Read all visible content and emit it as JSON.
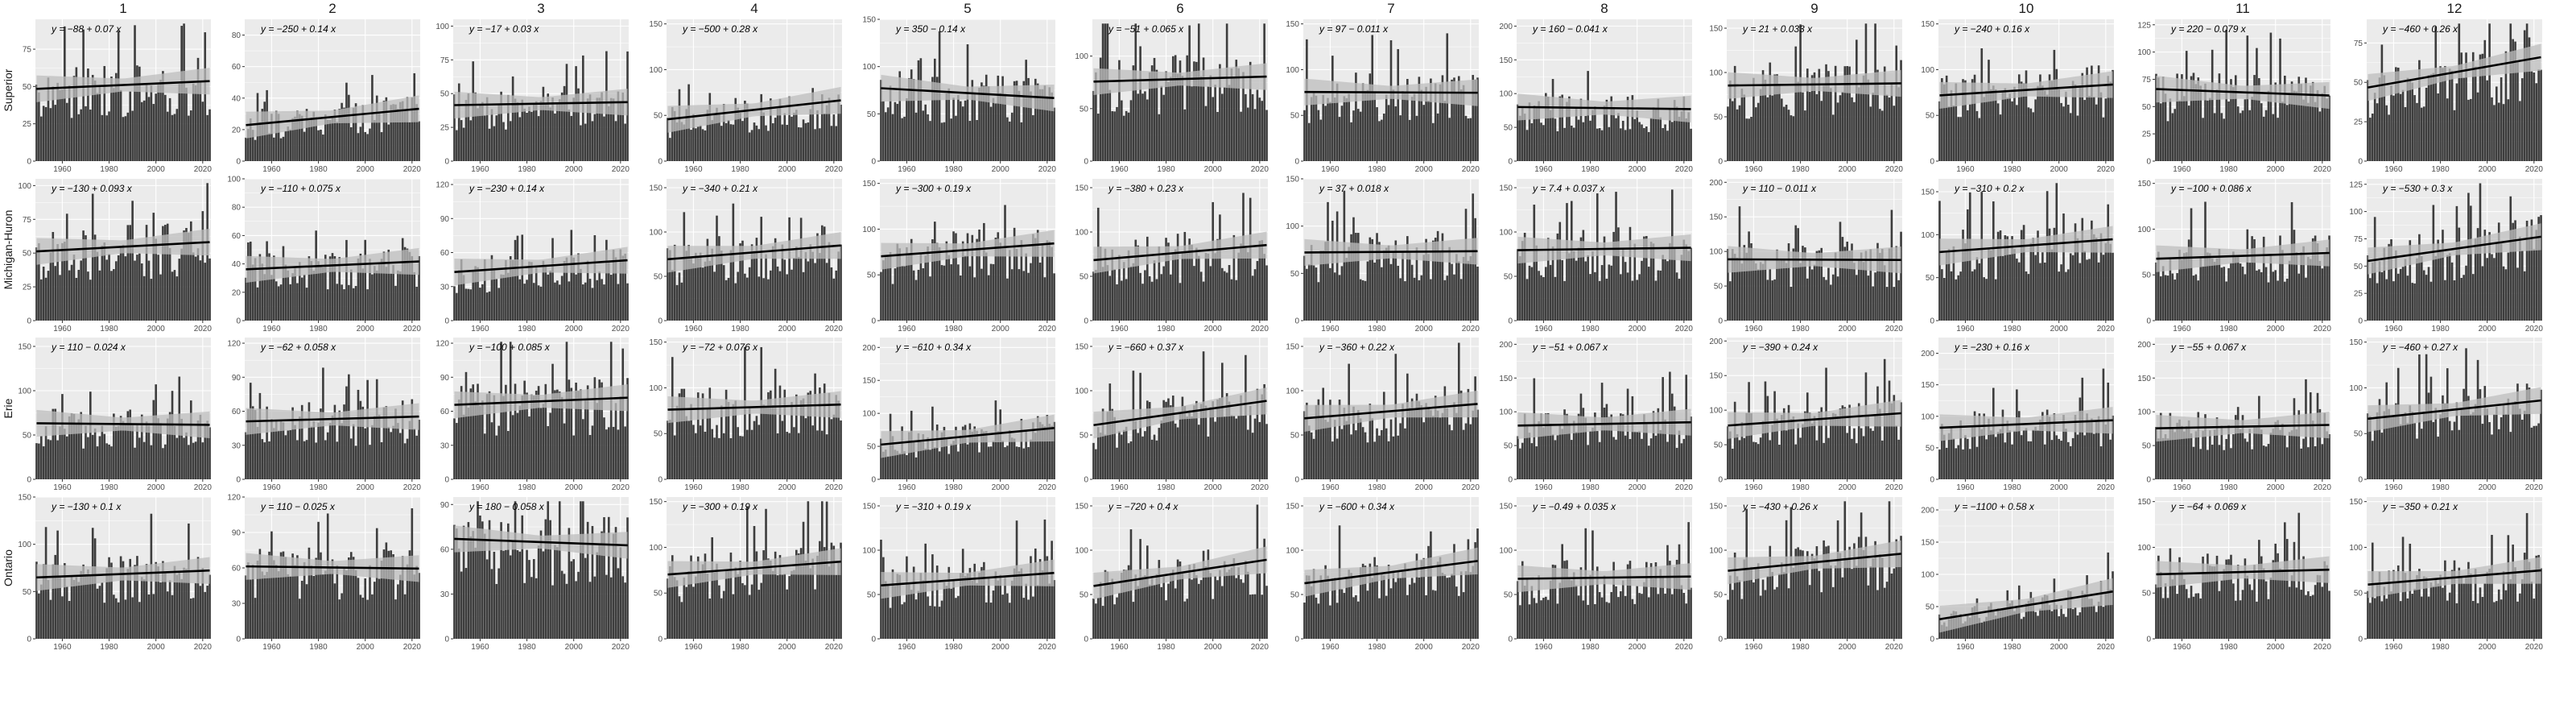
{
  "chart_data": {
    "type": "bar",
    "facets": {
      "columns": [
        "1",
        "2",
        "3",
        "4",
        "5",
        "6",
        "7",
        "8",
        "9",
        "10",
        "11",
        "12"
      ],
      "rows": [
        "Superior",
        "Michigan-Huron",
        "Erie",
        "Ontario"
      ]
    },
    "x_ticks": [
      "1960",
      "1980",
      "2000",
      "2020"
    ],
    "x_range": [
      1949,
      2023
    ],
    "overlay": "linear trend line with grey confidence band",
    "colors": {
      "bar": "#3d3d3d",
      "panel": "#ebebeb",
      "grid": "#ffffff",
      "trend": "#000000",
      "band": "#bdbdbd"
    },
    "panels": [
      {
        "row": "Superior",
        "col": "1",
        "equation": "y = −88 + 0.07 x",
        "y_ticks": [
          "0",
          "25",
          "50",
          "75"
        ],
        "y_max": 95
      },
      {
        "row": "Superior",
        "col": "2",
        "equation": "y = −250 + 0.14 x",
        "y_ticks": [
          "0",
          "20",
          "40",
          "60",
          "80"
        ],
        "y_max": 90
      },
      {
        "row": "Superior",
        "col": "3",
        "equation": "y = −17 + 0.03 x",
        "y_ticks": [
          "0",
          "25",
          "50",
          "75",
          "100"
        ],
        "y_max": 105
      },
      {
        "row": "Superior",
        "col": "4",
        "equation": "y = −500 + 0.28 x",
        "y_ticks": [
          "0",
          "50",
          "100",
          "150"
        ],
        "y_max": 155
      },
      {
        "row": "Superior",
        "col": "5",
        "equation": "y = 350 − 0.14 x",
        "y_ticks": [
          "0",
          "50",
          "100",
          "150"
        ],
        "y_max": 150
      },
      {
        "row": "Superior",
        "col": "6",
        "equation": "y = −51 + 0.065 x",
        "y_ticks": [
          "0",
          "50",
          "100"
        ],
        "y_max": 135
      },
      {
        "row": "Superior",
        "col": "7",
        "equation": "y = 97 − 0.011 x",
        "y_ticks": [
          "0",
          "50",
          "100",
          "150"
        ],
        "y_max": 155
      },
      {
        "row": "Superior",
        "col": "8",
        "equation": "y = 160 − 0.041 x",
        "y_ticks": [
          "0",
          "50",
          "100",
          "150",
          "200"
        ],
        "y_max": 210
      },
      {
        "row": "Superior",
        "col": "9",
        "equation": "y = 21 + 0.033 x",
        "y_ticks": [
          "0",
          "50",
          "100",
          "150"
        ],
        "y_max": 160
      },
      {
        "row": "Superior",
        "col": "10",
        "equation": "y = −240 + 0.16 x",
        "y_ticks": [
          "0",
          "50",
          "100",
          "150"
        ],
        "y_max": 155
      },
      {
        "row": "Superior",
        "col": "11",
        "equation": "y = 220 − 0.079 x",
        "y_ticks": [
          "0",
          "25",
          "50",
          "75",
          "100",
          "125"
        ],
        "y_max": 130
      },
      {
        "row": "Superior",
        "col": "12",
        "equation": "y = −460 + 0.26 x",
        "y_ticks": [
          "0",
          "25",
          "50",
          "75"
        ],
        "y_max": 90
      },
      {
        "row": "Michigan-Huron",
        "col": "1",
        "equation": "y = −130 + 0.093 x",
        "y_ticks": [
          "0",
          "25",
          "50",
          "75",
          "100"
        ],
        "y_max": 105
      },
      {
        "row": "Michigan-Huron",
        "col": "2",
        "equation": "y = −110 + 0.075 x",
        "y_ticks": [
          "0",
          "20",
          "40",
          "60",
          "80",
          "100"
        ],
        "y_max": 100
      },
      {
        "row": "Michigan-Huron",
        "col": "3",
        "equation": "y = −230 + 0.14 x",
        "y_ticks": [
          "0",
          "30",
          "60",
          "90",
          "120"
        ],
        "y_max": 125
      },
      {
        "row": "Michigan-Huron",
        "col": "4",
        "equation": "y = −340 + 0.21 x",
        "y_ticks": [
          "0",
          "50",
          "100",
          "150"
        ],
        "y_max": 160
      },
      {
        "row": "Michigan-Huron",
        "col": "5",
        "equation": "y = −300 + 0.19 x",
        "y_ticks": [
          "0",
          "50",
          "100",
          "150"
        ],
        "y_max": 155
      },
      {
        "row": "Michigan-Huron",
        "col": "6",
        "equation": "y = −380 + 0.23 x",
        "y_ticks": [
          "0",
          "50",
          "100",
          "150"
        ],
        "y_max": 160
      },
      {
        "row": "Michigan-Huron",
        "col": "7",
        "equation": "y = 37 + 0.018 x",
        "y_ticks": [
          "0",
          "50",
          "100",
          "150"
        ],
        "y_max": 150
      },
      {
        "row": "Michigan-Huron",
        "col": "8",
        "equation": "y = 7.4 + 0.037 x",
        "y_ticks": [
          "0",
          "50",
          "100",
          "150"
        ],
        "y_max": 160
      },
      {
        "row": "Michigan-Huron",
        "col": "9",
        "equation": "y = 110 − 0.011 x",
        "y_ticks": [
          "0",
          "50",
          "100",
          "150",
          "200"
        ],
        "y_max": 205
      },
      {
        "row": "Michigan-Huron",
        "col": "10",
        "equation": "y = −310 + 0.2 x",
        "y_ticks": [
          "0",
          "50",
          "100",
          "150"
        ],
        "y_max": 165
      },
      {
        "row": "Michigan-Huron",
        "col": "11",
        "equation": "y = −100 + 0.086 x",
        "y_ticks": [
          "0",
          "50",
          "100",
          "150"
        ],
        "y_max": 155
      },
      {
        "row": "Michigan-Huron",
        "col": "12",
        "equation": "y = −530 + 0.3 x",
        "y_ticks": [
          "0",
          "25",
          "50",
          "75",
          "100",
          "125"
        ],
        "y_max": 130
      },
      {
        "row": "Erie",
        "col": "1",
        "equation": "y = 110 − 0.024 x",
        "y_ticks": [
          "0",
          "50",
          "100",
          "150"
        ],
        "y_max": 160
      },
      {
        "row": "Erie",
        "col": "2",
        "equation": "y = −62 + 0.058 x",
        "y_ticks": [
          "0",
          "30",
          "60",
          "90",
          "120"
        ],
        "y_max": 125
      },
      {
        "row": "Erie",
        "col": "3",
        "equation": "y = −100 + 0.085 x",
        "y_ticks": [
          "0",
          "30",
          "60",
          "90",
          "120"
        ],
        "y_max": 125
      },
      {
        "row": "Erie",
        "col": "4",
        "equation": "y = −72 + 0.076 x",
        "y_ticks": [
          "0",
          "50",
          "100",
          "150"
        ],
        "y_max": 155
      },
      {
        "row": "Erie",
        "col": "5",
        "equation": "y = −610 + 0.34 x",
        "y_ticks": [
          "0",
          "50",
          "100",
          "150",
          "200"
        ],
        "y_max": 215
      },
      {
        "row": "Erie",
        "col": "6",
        "equation": "y = −660 + 0.37 x",
        "y_ticks": [
          "0",
          "50",
          "100",
          "150"
        ],
        "y_max": 160
      },
      {
        "row": "Erie",
        "col": "7",
        "equation": "y = −360 + 0.22 x",
        "y_ticks": [
          "0",
          "50",
          "100",
          "150"
        ],
        "y_max": 160
      },
      {
        "row": "Erie",
        "col": "8",
        "equation": "y = −51 + 0.067 x",
        "y_ticks": [
          "0",
          "50",
          "100",
          "150",
          "200"
        ],
        "y_max": 210
      },
      {
        "row": "Erie",
        "col": "9",
        "equation": "y = −390 + 0.24 x",
        "y_ticks": [
          "0",
          "50",
          "100",
          "150",
          "200"
        ],
        "y_max": 205
      },
      {
        "row": "Erie",
        "col": "10",
        "equation": "y = −230 + 0.16 x",
        "y_ticks": [
          "0",
          "50",
          "100",
          "150",
          "200"
        ],
        "y_max": 225
      },
      {
        "row": "Erie",
        "col": "11",
        "equation": "y = −55 + 0.067 x",
        "y_ticks": [
          "0",
          "50",
          "100",
          "150",
          "200"
        ],
        "y_max": 210
      },
      {
        "row": "Erie",
        "col": "12",
        "equation": "y = −460 + 0.27 x",
        "y_ticks": [
          "0",
          "50",
          "100",
          "150"
        ],
        "y_max": 155
      },
      {
        "row": "Ontario",
        "col": "1",
        "equation": "y = −130 + 0.1 x",
        "y_ticks": [
          "0",
          "50",
          "100",
          "150"
        ],
        "y_max": 150
      },
      {
        "row": "Ontario",
        "col": "2",
        "equation": "y = 110 − 0.025 x",
        "y_ticks": [
          "0",
          "30",
          "60",
          "90",
          "120"
        ],
        "y_max": 120
      },
      {
        "row": "Ontario",
        "col": "3",
        "equation": "y = 180 − 0.058 x",
        "y_ticks": [
          "0",
          "30",
          "60",
          "90"
        ],
        "y_max": 95
      },
      {
        "row": "Ontario",
        "col": "4",
        "equation": "y = −300 + 0.19 x",
        "y_ticks": [
          "0",
          "50",
          "100",
          "150"
        ],
        "y_max": 155
      },
      {
        "row": "Ontario",
        "col": "5",
        "equation": "y = −310 + 0.19 x",
        "y_ticks": [
          "0",
          "50",
          "100",
          "150"
        ],
        "y_max": 160
      },
      {
        "row": "Ontario",
        "col": "6",
        "equation": "y = −720 + 0.4 x",
        "y_ticks": [
          "0",
          "50",
          "100",
          "150"
        ],
        "y_max": 160
      },
      {
        "row": "Ontario",
        "col": "7",
        "equation": "y = −600 + 0.34 x",
        "y_ticks": [
          "0",
          "50",
          "100",
          "150"
        ],
        "y_max": 160
      },
      {
        "row": "Ontario",
        "col": "8",
        "equation": "y = −0.49 + 0.035 x",
        "y_ticks": [
          "0",
          "50",
          "100",
          "150"
        ],
        "y_max": 160
      },
      {
        "row": "Ontario",
        "col": "9",
        "equation": "y = −430 + 0.26 x",
        "y_ticks": [
          "0",
          "50",
          "100",
          "150"
        ],
        "y_max": 160
      },
      {
        "row": "Ontario",
        "col": "10",
        "equation": "y = −1100 + 0.58 x",
        "y_ticks": [
          "0",
          "50",
          "100",
          "150",
          "200"
        ],
        "y_max": 220
      },
      {
        "row": "Ontario",
        "col": "11",
        "equation": "y = −64 + 0.069 x",
        "y_ticks": [
          "0",
          "50",
          "100",
          "150"
        ],
        "y_max": 155
      },
      {
        "row": "Ontario",
        "col": "12",
        "equation": "y = −350 + 0.21 x",
        "y_ticks": [
          "0",
          "50",
          "100",
          "150"
        ],
        "y_max": 155
      }
    ]
  }
}
